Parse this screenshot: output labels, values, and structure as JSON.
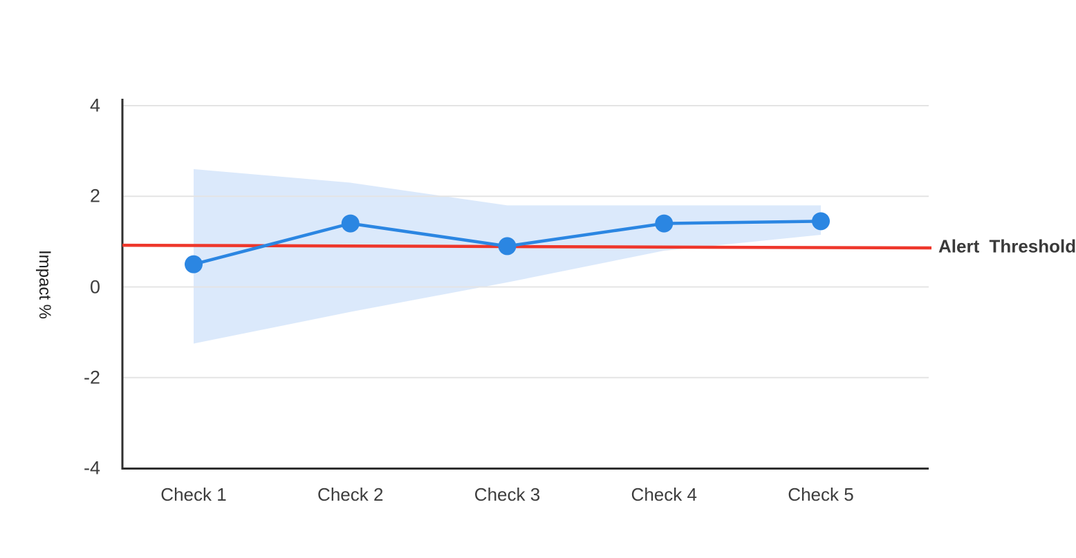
{
  "chart_data": {
    "type": "line",
    "title": "",
    "categories": [
      "Check 1",
      "Check 2",
      "Check 3",
      "Check 4",
      "Check 5"
    ],
    "series": [
      {
        "name": "Impact",
        "values": [
          0.5,
          1.4,
          0.9,
          1.4,
          1.45
        ],
        "color": "#2b86e2",
        "marker": "circle"
      }
    ],
    "confidence_band": {
      "upper": [
        2.6,
        2.3,
        1.8,
        1.8,
        1.8
      ],
      "lower": [
        -1.25,
        -0.55,
        0.1,
        0.8,
        1.15
      ],
      "color": "#dbe9fb"
    },
    "threshold": {
      "label": "Alert Threshold",
      "value": 0.9,
      "start_value": 0.92,
      "end_value": 0.86,
      "color": "#ee372b"
    },
    "ylabel": "Impact %",
    "xlabel": "",
    "yticks": [
      4,
      2,
      0,
      -2,
      -4
    ],
    "ylim": [
      -4,
      4
    ],
    "grid": "horizontal",
    "legend_position": "right-of-threshold-line",
    "colors": {
      "grid": "#e4e4e4",
      "axis": "#2f2f2f",
      "tick_text": "#3d3d3d",
      "ylabel_text": "#1c1c1c",
      "threshold_label_text": "#3a3a3a",
      "background": "#ffffff"
    }
  }
}
